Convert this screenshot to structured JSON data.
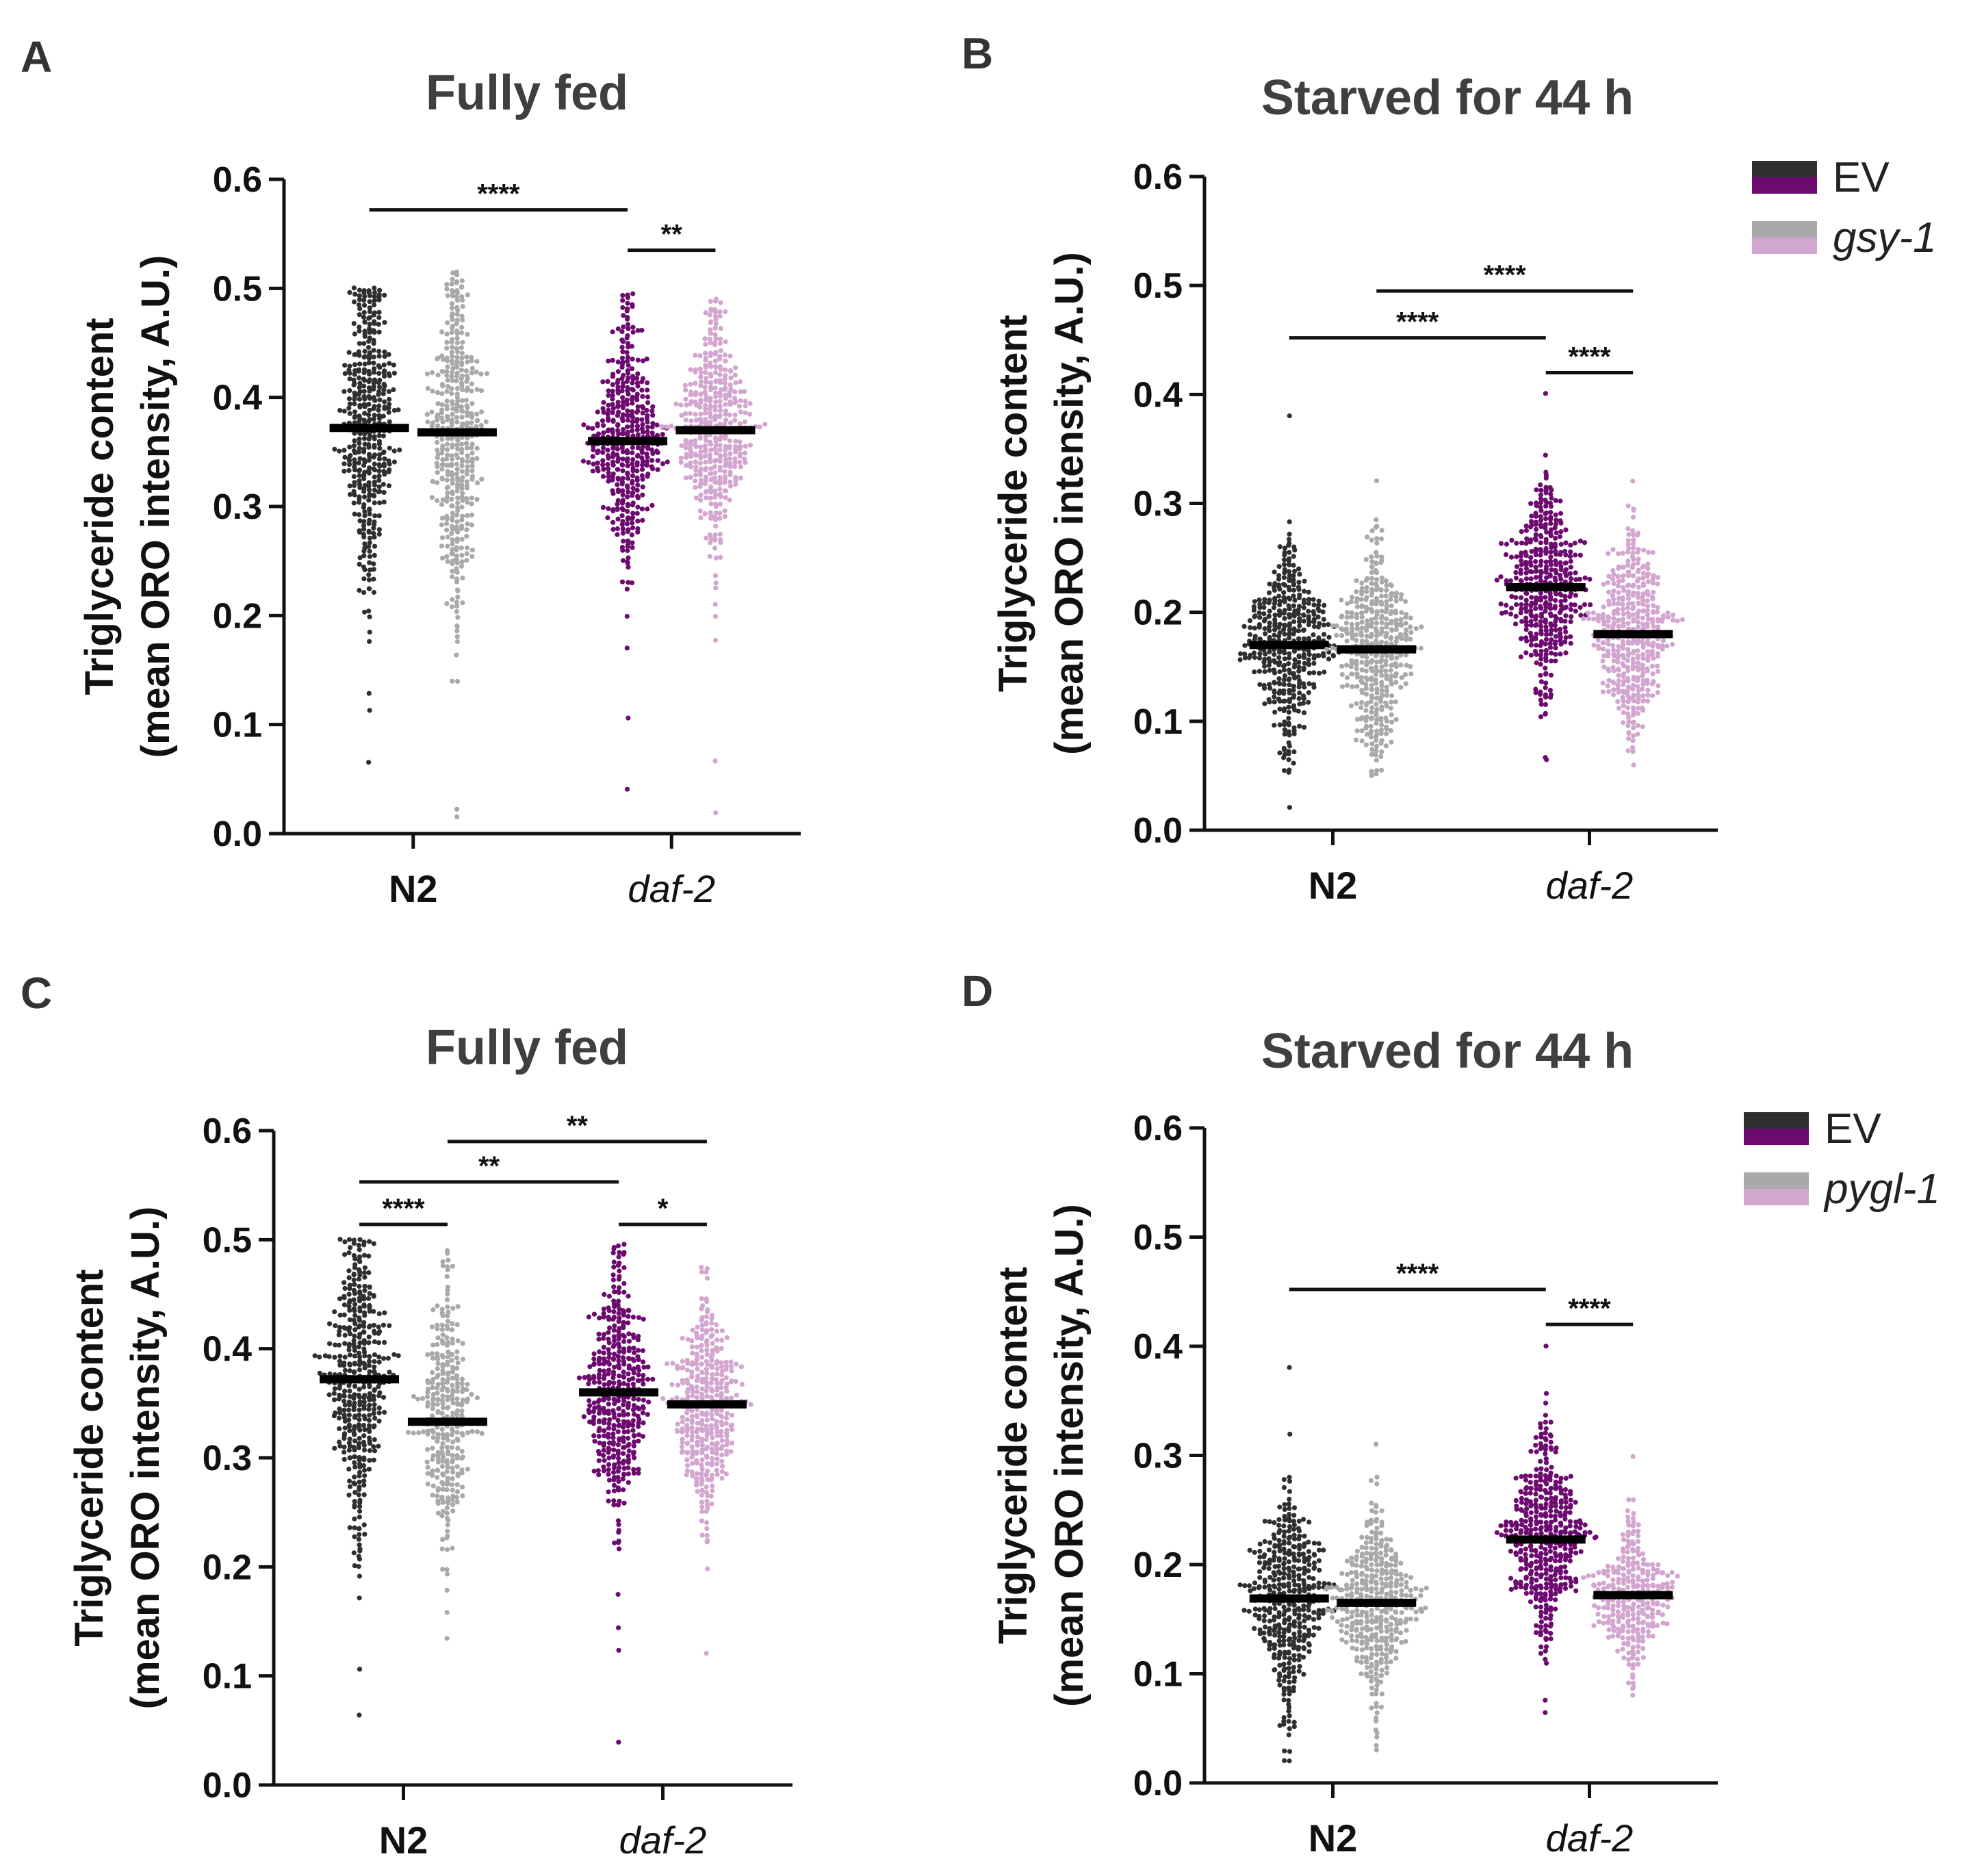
{
  "colors": {
    "n2_ev": "#2f2f2f",
    "n2_rnai": "#a9a9a9",
    "daf2_ev": "#6d0a6f",
    "daf2_rnai": "#d3a6d0",
    "axis": "#111111",
    "mean_bar": "#000000"
  },
  "chart_data": [
    {
      "id": "A",
      "type": "scatter",
      "panel_label": "A",
      "title": "Fully fed",
      "ylabel_line1": "Triglyceride content",
      "ylabel_line2": "(mean ORO intensity, A.U.)",
      "ylim": [
        0,
        0.6
      ],
      "yticks": [
        "0.0",
        "0.1",
        "0.2",
        "0.3",
        "0.4",
        "0.5",
        "0.6"
      ],
      "categories": [
        "N2",
        "daf-2"
      ],
      "series": [
        {
          "name": "N2 EV",
          "group": "N2",
          "treatment": "EV",
          "color_key": "n2_ev",
          "mean": 0.372,
          "sd": 0.07,
          "min": 0.065,
          "max": 0.5,
          "n": 420,
          "offset": -0.25
        },
        {
          "name": "N2 gsy-1",
          "group": "N2",
          "treatment": "gsy-1",
          "color_key": "n2_rnai",
          "mean": 0.368,
          "sd": 0.075,
          "min": 0.015,
          "max": 0.515,
          "n": 420,
          "offset": 0.25
        },
        {
          "name": "daf-2 EV",
          "group": "daf-2",
          "treatment": "EV",
          "color_key": "daf2_ev",
          "mean": 0.36,
          "sd": 0.055,
          "min": 0.04,
          "max": 0.495,
          "n": 420,
          "offset": -0.25
        },
        {
          "name": "daf-2 gsy-1",
          "group": "daf-2",
          "treatment": "gsy-1",
          "color_key": "daf2_rnai",
          "mean": 0.37,
          "sd": 0.05,
          "min": 0.02,
          "max": 0.49,
          "n": 420,
          "offset": 0.25
        }
      ],
      "significance": [
        {
          "from": 0,
          "to": 2,
          "y": 0.572,
          "label": "****"
        },
        {
          "from": 2,
          "to": 3,
          "y": 0.535,
          "label": "**"
        }
      ],
      "legend": null
    },
    {
      "id": "B",
      "type": "scatter",
      "panel_label": "B",
      "title": "Starved for 44 h",
      "ylabel_line1": "Triglyceride content",
      "ylabel_line2": "(mean ORO intensity, A.U.)",
      "ylim": [
        0,
        0.6
      ],
      "yticks": [
        "0.0",
        "0.1",
        "0.2",
        "0.3",
        "0.4",
        "0.5",
        "0.6"
      ],
      "categories": [
        "N2",
        "daf-2"
      ],
      "series": [
        {
          "name": "N2 EV",
          "group": "N2",
          "treatment": "EV",
          "color_key": "n2_ev",
          "mean": 0.17,
          "sd": 0.045,
          "min": 0.02,
          "max": 0.38,
          "n": 420,
          "offset": -0.25
        },
        {
          "name": "N2 gsy-1",
          "group": "N2",
          "treatment": "gsy-1",
          "color_key": "n2_rnai",
          "mean": 0.166,
          "sd": 0.045,
          "min": 0.05,
          "max": 0.32,
          "n": 420,
          "offset": 0.25
        },
        {
          "name": "daf-2 EV",
          "group": "daf-2",
          "treatment": "EV",
          "color_key": "daf2_ev",
          "mean": 0.223,
          "sd": 0.045,
          "min": 0.065,
          "max": 0.4,
          "n": 420,
          "offset": -0.25
        },
        {
          "name": "daf-2 gsy-1",
          "group": "daf-2",
          "treatment": "gsy-1",
          "color_key": "daf2_rnai",
          "mean": 0.18,
          "sd": 0.045,
          "min": 0.06,
          "max": 0.32,
          "n": 420,
          "offset": 0.25
        }
      ],
      "significance": [
        {
          "from": 1,
          "to": 3,
          "y": 0.495,
          "label": "****"
        },
        {
          "from": 0,
          "to": 2,
          "y": 0.452,
          "label": "****"
        },
        {
          "from": 2,
          "to": 3,
          "y": 0.42,
          "label": "****"
        }
      ],
      "legend": {
        "entries": [
          {
            "label": "EV",
            "italic": false,
            "top_color_key": "n2_ev",
            "bottom_color_key": "daf2_ev"
          },
          {
            "label": "gsy-1",
            "italic": true,
            "top_color_key": "n2_rnai",
            "bottom_color_key": "daf2_rnai"
          }
        ]
      }
    },
    {
      "id": "C",
      "type": "scatter",
      "panel_label": "C",
      "title": "Fully fed",
      "ylabel_line1": "Triglyceride content",
      "ylabel_line2": "(mean ORO intensity, A.U.)",
      "ylim": [
        0,
        0.6
      ],
      "yticks": [
        "0.0",
        "0.1",
        "0.2",
        "0.3",
        "0.4",
        "0.5",
        "0.6"
      ],
      "categories": [
        "N2",
        "daf-2"
      ],
      "series": [
        {
          "name": "N2 EV",
          "group": "N2",
          "treatment": "EV",
          "color_key": "n2_ev",
          "mean": 0.372,
          "sd": 0.07,
          "min": 0.065,
          "max": 0.5,
          "n": 420,
          "offset": -0.25
        },
        {
          "name": "N2 pygl-1",
          "group": "N2",
          "treatment": "pygl-1",
          "color_key": "n2_rnai",
          "mean": 0.333,
          "sd": 0.06,
          "min": 0.135,
          "max": 0.49,
          "n": 320,
          "offset": 0.25
        },
        {
          "name": "daf-2 EV",
          "group": "daf-2",
          "treatment": "EV",
          "color_key": "daf2_ev",
          "mean": 0.36,
          "sd": 0.055,
          "min": 0.04,
          "max": 0.495,
          "n": 420,
          "offset": -0.25
        },
        {
          "name": "daf-2 pygl-1",
          "group": "daf-2",
          "treatment": "pygl-1",
          "color_key": "daf2_rnai",
          "mean": 0.349,
          "sd": 0.05,
          "min": 0.12,
          "max": 0.475,
          "n": 380,
          "offset": 0.25
        }
      ],
      "significance": [
        {
          "from": 1,
          "to": 3,
          "y": 0.59,
          "label": "**"
        },
        {
          "from": 0,
          "to": 2,
          "y": 0.553,
          "label": "**"
        },
        {
          "from": 0,
          "to": 1,
          "y": 0.514,
          "label": "****"
        },
        {
          "from": 2,
          "to": 3,
          "y": 0.514,
          "label": "*"
        }
      ],
      "legend": null
    },
    {
      "id": "D",
      "type": "scatter",
      "panel_label": "D",
      "title": "Starved for 44 h",
      "ylabel_line1": "Triglyceride content",
      "ylabel_line2": "(mean ORO intensity, A.U.)",
      "ylim": [
        0,
        0.6
      ],
      "yticks": [
        "0.0",
        "0.1",
        "0.2",
        "0.3",
        "0.4",
        "0.5",
        "0.6"
      ],
      "categories": [
        "N2",
        "daf-2"
      ],
      "series": [
        {
          "name": "N2 EV",
          "group": "N2",
          "treatment": "EV",
          "color_key": "n2_ev",
          "mean": 0.169,
          "sd": 0.045,
          "min": 0.02,
          "max": 0.38,
          "n": 420,
          "offset": -0.25
        },
        {
          "name": "N2 pygl-1",
          "group": "N2",
          "treatment": "pygl-1",
          "color_key": "n2_rnai",
          "mean": 0.165,
          "sd": 0.04,
          "min": 0.03,
          "max": 0.31,
          "n": 400,
          "offset": 0.25
        },
        {
          "name": "daf-2 EV",
          "group": "daf-2",
          "treatment": "EV",
          "color_key": "daf2_ev",
          "mean": 0.223,
          "sd": 0.045,
          "min": 0.065,
          "max": 0.4,
          "n": 420,
          "offset": -0.25
        },
        {
          "name": "daf-2 pygl-1",
          "group": "daf-2",
          "treatment": "pygl-1",
          "color_key": "daf2_rnai",
          "mean": 0.172,
          "sd": 0.035,
          "min": 0.08,
          "max": 0.3,
          "n": 300,
          "offset": 0.25
        }
      ],
      "significance": [
        {
          "from": 0,
          "to": 2,
          "y": 0.452,
          "label": "****"
        },
        {
          "from": 2,
          "to": 3,
          "y": 0.42,
          "label": "****"
        }
      ],
      "legend": {
        "entries": [
          {
            "label": "EV",
            "italic": false,
            "top_color_key": "n2_ev",
            "bottom_color_key": "daf2_ev"
          },
          {
            "label": "pygl-1",
            "italic": true,
            "top_color_key": "n2_rnai",
            "bottom_color_key": "daf2_rnai"
          }
        ]
      }
    }
  ]
}
